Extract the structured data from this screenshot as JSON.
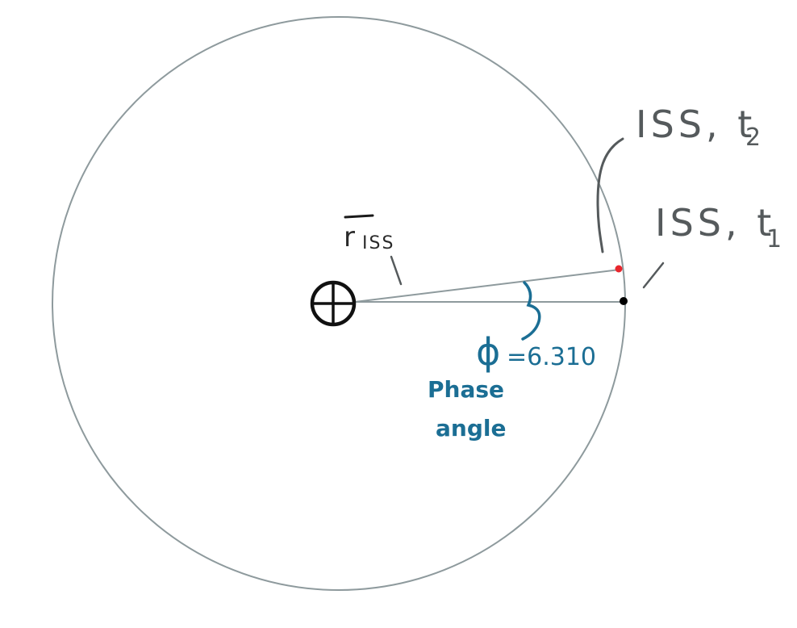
{
  "labels": {
    "r_iss": "r",
    "r_iss_sub": "ISS",
    "iss_t2": "ISS, t",
    "iss_t2_sub": "2",
    "iss_t1": "ISS, t",
    "iss_t1_sub": "1",
    "phi_symbol": "ϕ",
    "phi_value": "=6.310",
    "phase_line1": "Phase",
    "phase_line2": "angle"
  },
  "colors": {
    "orbit": "#8e9a9d",
    "ink_black": "#1a1a1a",
    "leader": "#555a5c",
    "annotation_blue": "#1b6e94",
    "point_t2": "#e8262d",
    "point_t1": "#000000"
  },
  "icons": {
    "earth": "earth-symbol-icon"
  }
}
